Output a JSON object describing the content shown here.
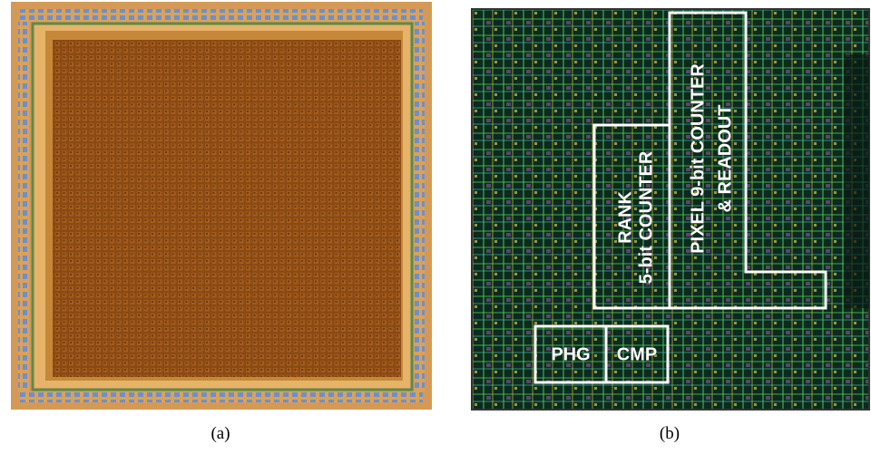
{
  "panels": [
    {
      "caption": "(a)"
    },
    {
      "caption": "(b)",
      "labels": {
        "rank": "RANK",
        "rank_counter": "5-bit COUNTER",
        "pixel_counter": "PIXEL 9-bit COUNTER",
        "readout": "& READOUT",
        "phg": "PHG",
        "cmp": "CMP"
      }
    }
  ]
}
